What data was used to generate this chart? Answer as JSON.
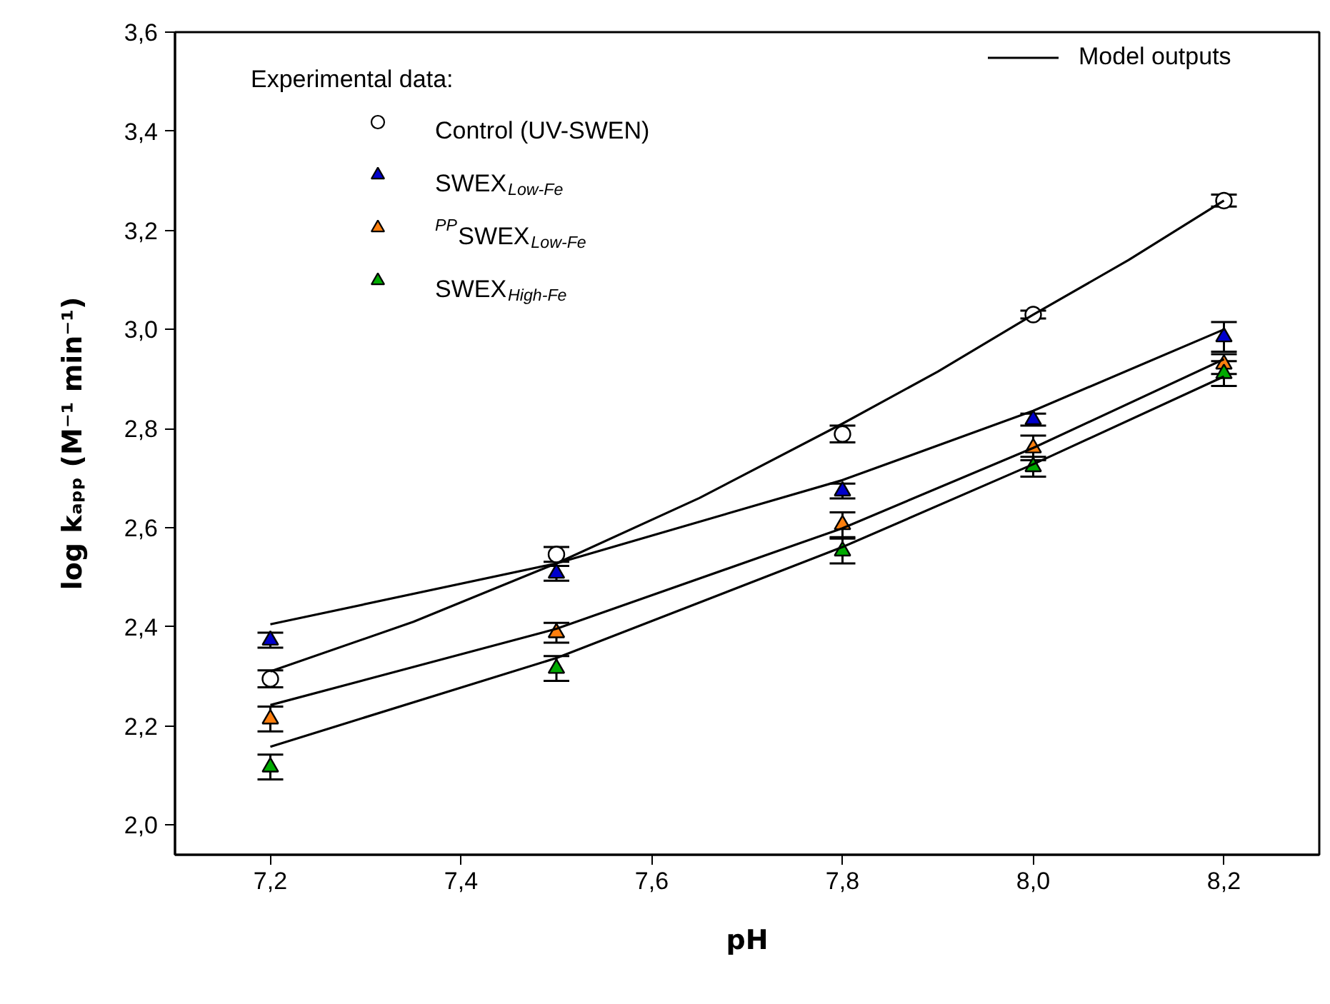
{
  "chart_data": {
    "type": "scatter",
    "xlabel": "pH",
    "ylabel": "log kₐₚₚ (M⁻¹ min⁻¹)",
    "xlim": [
      7.1,
      8.3
    ],
    "ylim": [
      1.94,
      3.6
    ],
    "xticks": [
      {
        "value": 7.2,
        "label": "7,2"
      },
      {
        "value": 7.4,
        "label": "7,4"
      },
      {
        "value": 7.6,
        "label": "7,6"
      },
      {
        "value": 7.8,
        "label": "7,8"
      },
      {
        "value": 8.0,
        "label": "8,0"
      },
      {
        "value": 8.2,
        "label": "8,2"
      }
    ],
    "yticks": [
      {
        "value": 2.0,
        "label": "2,0"
      },
      {
        "value": 2.2,
        "label": "2,2"
      },
      {
        "value": 2.4,
        "label": "2,4"
      },
      {
        "value": 2.6,
        "label": "2,6"
      },
      {
        "value": 2.8,
        "label": "2,8"
      },
      {
        "value": 3.0,
        "label": "3,0"
      },
      {
        "value": 3.2,
        "label": "3,2"
      },
      {
        "value": 3.4,
        "label": "3,4"
      },
      {
        "value": 3.6,
        "label": "3,6"
      }
    ],
    "x": [
      7.2,
      7.5,
      7.8,
      8.0,
      8.2
    ],
    "grid": false,
    "legend": "top",
    "legend_title": "Experimental data:",
    "series": [
      {
        "name": "Control (UV-SWEN)",
        "color": "#ffffff",
        "marker": "circle",
        "values": [
          2.295,
          2.546,
          2.789,
          3.03,
          3.26
        ],
        "errors": [
          0.017,
          0.015,
          0.017,
          0.008,
          0.012
        ]
      },
      {
        "name": "SWEX$_{Low-Fe}$",
        "color": "#0000cc",
        "marker": "triangle",
        "values": [
          2.373,
          2.508,
          2.674,
          2.818,
          2.985
        ],
        "errors": [
          0.015,
          0.015,
          0.015,
          0.012,
          0.03
        ]
      },
      {
        "name": "$^{PP}$SWEX$_{Low-Fe}$",
        "color": "#ff7f0e",
        "marker": "triangle",
        "values": [
          2.214,
          2.388,
          2.606,
          2.761,
          2.93
        ],
        "errors": [
          0.025,
          0.02,
          0.025,
          0.025,
          0.02
        ]
      },
      {
        "name": "SWEX$_{High-Fe}$",
        "color": "#00aa00",
        "marker": "triangle",
        "values": [
          2.117,
          2.316,
          2.553,
          2.723,
          2.911
        ],
        "errors": [
          0.025,
          0.025,
          0.025,
          0.02,
          0.025
        ]
      },
      {
        "type": "line",
        "name": "Model outputs",
        "color": "#000000",
        "x": [
          7.2,
          7.35,
          7.5,
          7.65,
          7.8,
          7.9,
          8.0,
          8.1,
          8.2
        ],
        "values": [
          2.31,
          2.41,
          2.528,
          2.66,
          2.81,
          2.915,
          3.03,
          3.14,
          3.26
        ]
      },
      {
        "type": "line",
        "color": "#000000",
        "x": [
          7.2,
          7.5,
          7.8,
          8.0,
          8.2
        ],
        "values": [
          2.405,
          2.528,
          2.696,
          2.836,
          3.0
        ]
      },
      {
        "type": "line",
        "color": "#000000",
        "x": [
          7.2,
          7.5,
          7.8,
          8.0,
          8.2
        ],
        "values": [
          2.242,
          2.396,
          2.599,
          2.761,
          2.94
        ]
      },
      {
        "type": "line",
        "color": "#000000",
        "x": [
          7.2,
          7.5,
          7.8,
          8.0,
          8.2
        ],
        "values": [
          2.158,
          2.337,
          2.561,
          2.728,
          2.905
        ]
      }
    ]
  }
}
